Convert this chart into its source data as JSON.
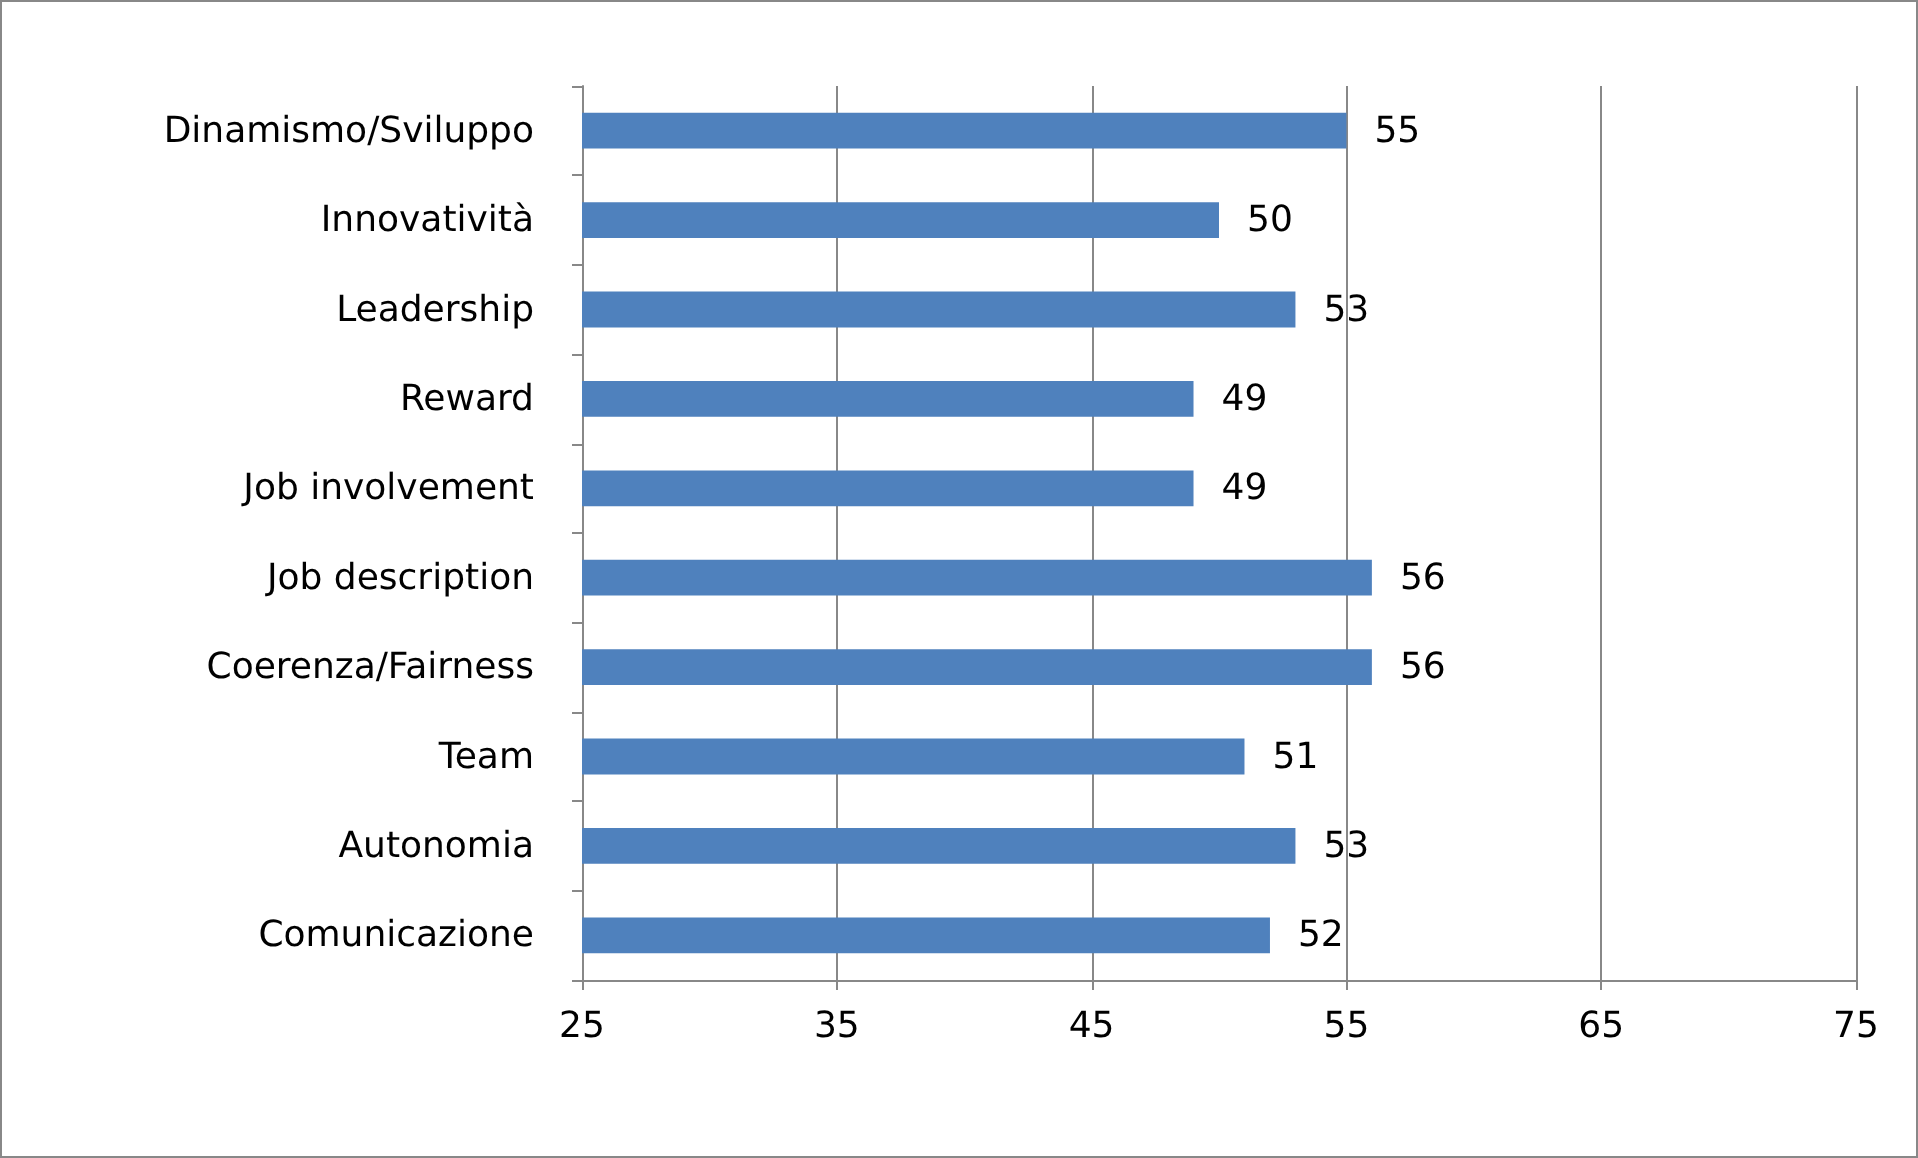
{
  "chart_data": {
    "type": "bar",
    "orientation": "horizontal",
    "categories": [
      "Dinamismo/Sviluppo",
      "Innovatività",
      "Leadership",
      "Reward",
      "Job involvement",
      "Job description",
      "Coerenza/Fairness",
      "Team",
      "Autonomia",
      "Comunicazione"
    ],
    "values": [
      55,
      50,
      53,
      49,
      49,
      56,
      56,
      51,
      53,
      52
    ],
    "color": "#4f81bd",
    "xlim": [
      25,
      75
    ],
    "xticks": [
      25,
      35,
      45,
      55,
      65,
      75
    ],
    "grid": "x",
    "data_labels": true
  }
}
